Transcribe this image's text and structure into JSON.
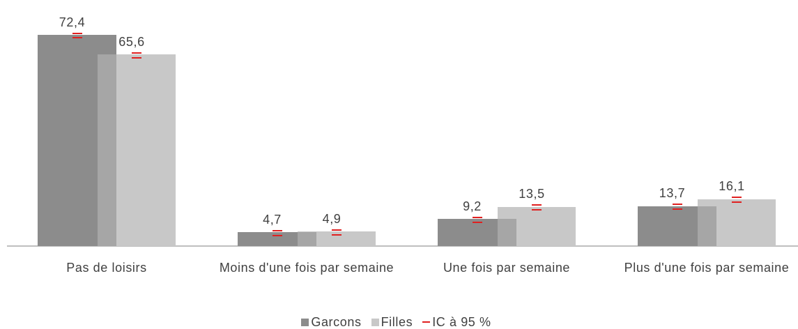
{
  "chart_data": {
    "type": "bar",
    "categories": [
      "Pas de loisirs",
      "Moins d'une fois par semaine",
      "Une fois par semaine",
      "Plus d'une fois par semaine"
    ],
    "series": [
      {
        "name": "Garcons",
        "color": "#8c8c8c",
        "values": [
          72.4,
          4.7,
          9.2,
          13.7
        ],
        "value_labels": [
          "72,4",
          "4,7",
          "9,2",
          "13,7"
        ],
        "errors": [
          0.8,
          0.8,
          0.8,
          0.8
        ]
      },
      {
        "name": "Filles",
        "color": "#c8c8c8",
        "values": [
          65.6,
          4.9,
          13.5,
          16.1
        ],
        "value_labels": [
          "65,6",
          "4,9",
          "13,5",
          "16,1"
        ],
        "errors": [
          0.8,
          0.8,
          0.8,
          0.8
        ]
      }
    ],
    "overlap_color": "#a6a6a6",
    "error_name": "IC à 95 %",
    "error_color": "#e02020",
    "legend": "bottom"
  }
}
